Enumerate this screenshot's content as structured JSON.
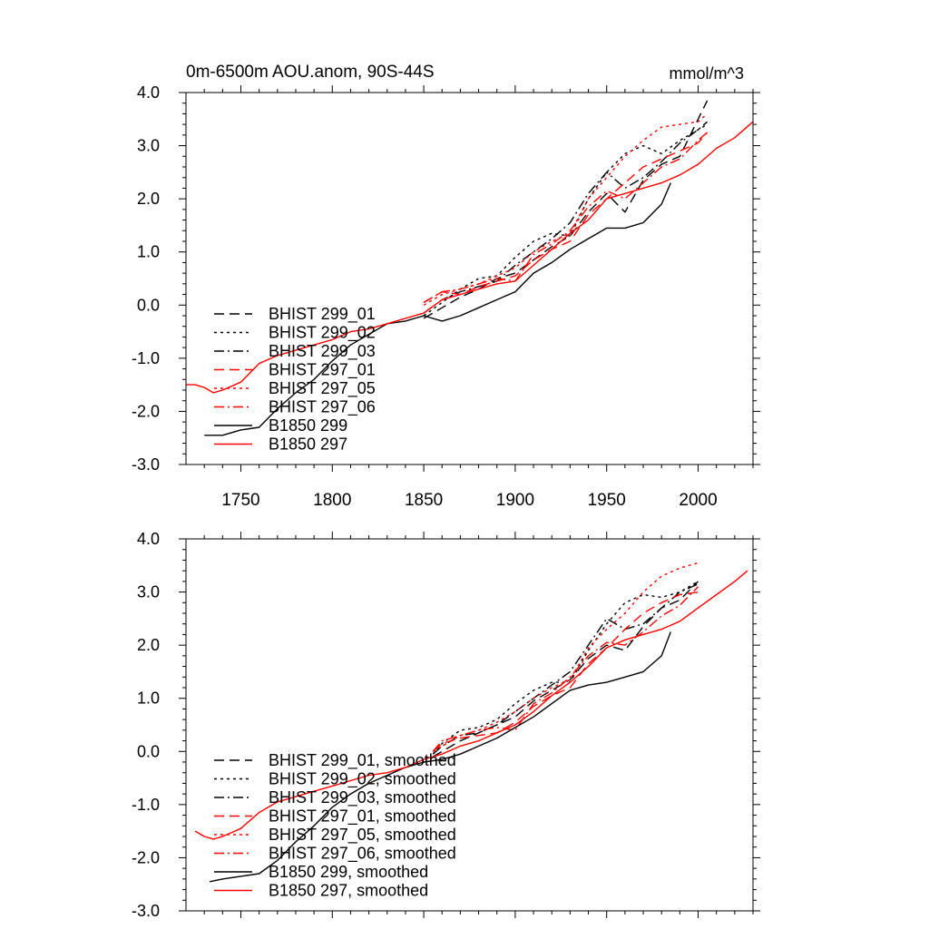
{
  "figure": {
    "background": "#ffffff"
  },
  "chart_data": [
    {
      "type": "line",
      "title": "0m-6500m AOU.anom, 90S-44S",
      "units": "mmol/m^3",
      "xlabel": "",
      "ylabel": "",
      "xlim": [
        1720,
        2030
      ],
      "ylim": [
        -3.0,
        4.0
      ],
      "xticks": [
        1750,
        1800,
        1850,
        1900,
        1950,
        2000
      ],
      "xticklabels": [
        "1750",
        "1800",
        "1850",
        "1900",
        "1950",
        "2000"
      ],
      "yticks": [
        -3.0,
        -2.0,
        -1.0,
        0.0,
        1.0,
        2.0,
        3.0,
        4.0
      ],
      "yticklabels": [
        "-3.0",
        "-2.0",
        "-1.0",
        "0.0",
        "1.0",
        "2.0",
        "3.0",
        "4.0"
      ],
      "grid": false,
      "legend_position": "lower-left",
      "series": [
        {
          "name": "BHIST 299_01",
          "color": "#000000",
          "dash": "dashed",
          "x": [
            1850,
            1860,
            1870,
            1880,
            1890,
            1900,
            1910,
            1920,
            1930,
            1940,
            1950,
            1960,
            1970,
            1980,
            1990,
            2000,
            2005
          ],
          "y": [
            -0.25,
            -0.05,
            0.15,
            0.3,
            0.5,
            0.6,
            0.85,
            1.1,
            1.3,
            1.75,
            2.1,
            1.75,
            2.35,
            2.65,
            2.8,
            3.5,
            3.85
          ]
        },
        {
          "name": "BHIST 299_02",
          "color": "#000000",
          "dash": "dotted",
          "x": [
            1850,
            1860,
            1870,
            1880,
            1890,
            1900,
            1910,
            1920,
            1930,
            1940,
            1950,
            1960,
            1970,
            1980,
            1990,
            2000,
            2005
          ],
          "y": [
            -0.2,
            0.05,
            0.3,
            0.5,
            0.55,
            0.9,
            1.2,
            1.35,
            1.3,
            2.0,
            2.5,
            2.85,
            3.0,
            2.85,
            3.1,
            3.3,
            3.4
          ]
        },
        {
          "name": "BHIST 299_03",
          "color": "#000000",
          "dash": "dashdot",
          "x": [
            1850,
            1860,
            1870,
            1880,
            1890,
            1900,
            1910,
            1920,
            1930,
            1940,
            1950,
            1960,
            1970,
            1980,
            1990,
            2000,
            2005
          ],
          "y": [
            -0.15,
            0.1,
            0.25,
            0.35,
            0.45,
            0.75,
            1.0,
            1.25,
            1.55,
            2.1,
            2.5,
            2.2,
            2.4,
            2.7,
            3.05,
            3.3,
            3.45
          ]
        },
        {
          "name": "BHIST 297_01",
          "color": "#ff0000",
          "dash": "dashed",
          "x": [
            1850,
            1860,
            1870,
            1880,
            1890,
            1900,
            1910,
            1920,
            1930,
            1940,
            1950,
            1960,
            1970,
            1980,
            1990,
            2000,
            2005
          ],
          "y": [
            0.05,
            0.25,
            0.2,
            0.35,
            0.45,
            0.55,
            0.85,
            1.05,
            1.2,
            1.7,
            2.0,
            2.3,
            2.6,
            2.75,
            2.9,
            3.05,
            3.25
          ]
        },
        {
          "name": "BHIST 297_05",
          "color": "#ff0000",
          "dash": "dotted",
          "x": [
            1850,
            1860,
            1870,
            1880,
            1890,
            1900,
            1910,
            1920,
            1930,
            1940,
            1950,
            1960,
            1970,
            1980,
            1990,
            2000,
            2005
          ],
          "y": [
            0.0,
            0.2,
            0.3,
            0.4,
            0.55,
            0.7,
            1.0,
            1.2,
            1.35,
            2.0,
            2.4,
            2.8,
            3.1,
            3.35,
            3.4,
            3.45,
            3.6
          ]
        },
        {
          "name": "BHIST 297_06",
          "color": "#ff0000",
          "dash": "dashdot",
          "x": [
            1850,
            1860,
            1870,
            1880,
            1890,
            1900,
            1910,
            1920,
            1930,
            1940,
            1950,
            1960,
            1970,
            1980,
            1990,
            2000,
            2005
          ],
          "y": [
            0.05,
            0.25,
            0.3,
            0.4,
            0.5,
            0.45,
            0.95,
            1.15,
            1.4,
            1.85,
            2.15,
            2.0,
            2.3,
            2.6,
            2.75,
            3.1,
            3.25
          ]
        },
        {
          "name": "B1850 299",
          "color": "#000000",
          "dash": "solid",
          "x": [
            1730,
            1740,
            1750,
            1760,
            1770,
            1780,
            1790,
            1800,
            1810,
            1820,
            1830,
            1840,
            1850,
            1860,
            1870,
            1880,
            1890,
            1900,
            1910,
            1920,
            1930,
            1940,
            1950,
            1960,
            1970,
            1980,
            1985
          ],
          "y": [
            -2.45,
            -2.45,
            -2.35,
            -2.3,
            -1.95,
            -1.65,
            -1.4,
            -1.05,
            -0.75,
            -0.55,
            -0.35,
            -0.3,
            -0.2,
            -0.3,
            -0.2,
            -0.05,
            0.1,
            0.25,
            0.6,
            0.8,
            1.05,
            1.25,
            1.45,
            1.45,
            1.55,
            1.9,
            2.3
          ]
        },
        {
          "name": "B1850 297",
          "color": "#ff0000",
          "dash": "solid",
          "x": [
            1720,
            1725,
            1730,
            1735,
            1740,
            1750,
            1760,
            1770,
            1780,
            1790,
            1800,
            1810,
            1820,
            1830,
            1840,
            1850,
            1860,
            1870,
            1880,
            1890,
            1900,
            1910,
            1920,
            1930,
            1940,
            1950,
            1960,
            1970,
            1980,
            1990,
            2000,
            2010,
            2020,
            2030
          ],
          "y": [
            -1.5,
            -1.5,
            -1.55,
            -1.65,
            -1.6,
            -1.45,
            -1.1,
            -0.95,
            -0.85,
            -0.75,
            -0.65,
            -0.5,
            -0.45,
            -0.35,
            -0.25,
            -0.15,
            0.1,
            0.2,
            0.3,
            0.4,
            0.45,
            0.75,
            1.05,
            1.35,
            1.6,
            2.0,
            2.1,
            2.2,
            2.3,
            2.45,
            2.65,
            2.95,
            3.15,
            3.45
          ]
        }
      ]
    },
    {
      "type": "line",
      "title": "",
      "xlabel": "",
      "ylabel": "",
      "xlim": [
        1720,
        2030
      ],
      "ylim": [
        -3.0,
        4.0
      ],
      "xticks": [
        1750,
        1800,
        1850,
        1900,
        1950,
        2000
      ],
      "yticks": [
        -3.0,
        -2.0,
        -1.0,
        0.0,
        1.0,
        2.0,
        3.0,
        4.0
      ],
      "yticklabels": [
        "-3.0",
        "-2.0",
        "-1.0",
        "0.0",
        "1.0",
        "2.0",
        "3.0",
        "4.0"
      ],
      "grid": false,
      "legend_position": "lower-left",
      "series": [
        {
          "name": "BHIST 299_01, smoothed",
          "color": "#000000",
          "dash": "dashed",
          "x": [
            1855,
            1860,
            1870,
            1880,
            1890,
            1900,
            1910,
            1920,
            1930,
            1940,
            1950,
            1960,
            1970,
            1980,
            1990,
            2000
          ],
          "y": [
            -0.1,
            0.0,
            0.2,
            0.35,
            0.5,
            0.65,
            0.95,
            1.15,
            1.35,
            1.75,
            2.0,
            1.9,
            2.35,
            2.7,
            2.85,
            3.2
          ]
        },
        {
          "name": "BHIST 299_02, smoothed",
          "color": "#000000",
          "dash": "dotted",
          "x": [
            1855,
            1860,
            1870,
            1880,
            1890,
            1900,
            1910,
            1920,
            1930,
            1940,
            1950,
            1960,
            1970,
            1980,
            1990,
            2000
          ],
          "y": [
            -0.05,
            0.15,
            0.4,
            0.45,
            0.6,
            0.9,
            1.15,
            1.3,
            1.3,
            1.9,
            2.4,
            2.8,
            2.95,
            2.9,
            3.0,
            3.2
          ]
        },
        {
          "name": "BHIST 299_03, smoothed",
          "color": "#000000",
          "dash": "dashdot",
          "x": [
            1855,
            1860,
            1870,
            1880,
            1890,
            1900,
            1910,
            1920,
            1930,
            1940,
            1950,
            1960,
            1970,
            1980,
            1990,
            2000
          ],
          "y": [
            -0.05,
            0.1,
            0.3,
            0.35,
            0.5,
            0.75,
            1.0,
            1.25,
            1.5,
            2.0,
            2.5,
            2.3,
            2.4,
            2.7,
            3.0,
            3.15
          ]
        },
        {
          "name": "BHIST 297_01, smoothed",
          "color": "#ff0000",
          "dash": "dashed",
          "x": [
            1855,
            1860,
            1870,
            1880,
            1890,
            1900,
            1910,
            1920,
            1930,
            1940,
            1950,
            1960,
            1970,
            1980,
            1990,
            2000
          ],
          "y": [
            0.0,
            0.15,
            0.25,
            0.3,
            0.35,
            0.55,
            0.85,
            1.05,
            1.2,
            1.65,
            1.95,
            2.3,
            2.6,
            2.8,
            2.95,
            3.0
          ]
        },
        {
          "name": "BHIST 297_05, smoothed",
          "color": "#ff0000",
          "dash": "dotted",
          "x": [
            1855,
            1860,
            1870,
            1880,
            1890,
            1900,
            1910,
            1920,
            1930,
            1940,
            1950,
            1960,
            1970,
            1980,
            1990,
            2000
          ],
          "y": [
            0.0,
            0.1,
            0.3,
            0.4,
            0.55,
            0.75,
            1.0,
            1.2,
            1.35,
            1.95,
            2.3,
            2.6,
            3.0,
            3.3,
            3.45,
            3.55
          ]
        },
        {
          "name": "BHIST 297_06, smoothed",
          "color": "#ff0000",
          "dash": "dashdot",
          "x": [
            1855,
            1860,
            1870,
            1880,
            1890,
            1900,
            1910,
            1920,
            1930,
            1940,
            1950,
            1960,
            1970,
            1980,
            1990,
            2000
          ],
          "y": [
            0.0,
            0.2,
            0.3,
            0.4,
            0.45,
            0.4,
            0.9,
            1.1,
            1.4,
            1.8,
            2.05,
            2.0,
            2.25,
            2.55,
            2.75,
            3.1
          ]
        },
        {
          "name": "B1850 299, smoothed",
          "color": "#000000",
          "dash": "solid",
          "x": [
            1733,
            1740,
            1750,
            1760,
            1770,
            1780,
            1790,
            1800,
            1810,
            1820,
            1830,
            1840,
            1850,
            1860,
            1870,
            1880,
            1890,
            1900,
            1910,
            1920,
            1930,
            1940,
            1950,
            1960,
            1970,
            1980,
            1985
          ],
          "y": [
            -2.45,
            -2.4,
            -2.35,
            -2.3,
            -2.05,
            -1.7,
            -1.4,
            -1.05,
            -0.8,
            -0.6,
            -0.45,
            -0.3,
            -0.2,
            -0.15,
            -0.05,
            0.1,
            0.25,
            0.45,
            0.65,
            0.9,
            1.15,
            1.25,
            1.3,
            1.4,
            1.5,
            1.8,
            2.25
          ]
        },
        {
          "name": "B1850 297, smoothed",
          "color": "#ff0000",
          "dash": "solid",
          "x": [
            1725,
            1730,
            1735,
            1740,
            1750,
            1760,
            1770,
            1780,
            1790,
            1800,
            1810,
            1820,
            1830,
            1840,
            1850,
            1860,
            1870,
            1880,
            1890,
            1900,
            1910,
            1920,
            1930,
            1940,
            1950,
            1960,
            1970,
            1980,
            1990,
            2000,
            2010,
            2020,
            2027
          ],
          "y": [
            -1.5,
            -1.6,
            -1.65,
            -1.6,
            -1.45,
            -1.15,
            -0.95,
            -0.85,
            -0.75,
            -0.65,
            -0.55,
            -0.45,
            -0.4,
            -0.3,
            -0.15,
            -0.05,
            0.1,
            0.2,
            0.35,
            0.5,
            0.75,
            1.05,
            1.3,
            1.6,
            1.95,
            2.1,
            2.2,
            2.3,
            2.45,
            2.7,
            2.95,
            3.2,
            3.4
          ]
        }
      ]
    }
  ]
}
